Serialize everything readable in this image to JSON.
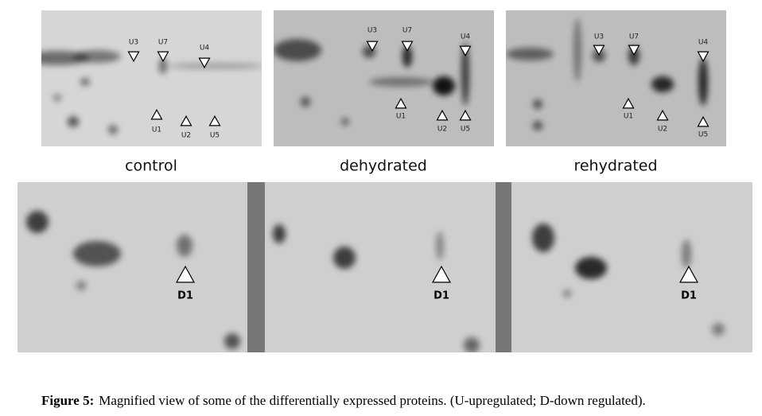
{
  "top_panels": [
    {
      "caption": "control",
      "markers": [
        "U3",
        "U7",
        "U4",
        "U1",
        "U2",
        "U5"
      ]
    },
    {
      "caption": "dehydrated",
      "markers": [
        "U3",
        "U7",
        "U4",
        "U1",
        "U2",
        "U5"
      ]
    },
    {
      "caption": "rehydrated",
      "markers": [
        "U3",
        "U7",
        "U4",
        "U1",
        "U2",
        "U5"
      ]
    }
  ],
  "bottom_panels": [
    {
      "marker": "D1"
    },
    {
      "marker": "D1"
    },
    {
      "marker": "D1"
    }
  ],
  "figure_caption": {
    "label": "Figure 5:",
    "text": "Magnified view of some of the differentially expressed proteins. (U-upregulated; D-down regulated)."
  }
}
